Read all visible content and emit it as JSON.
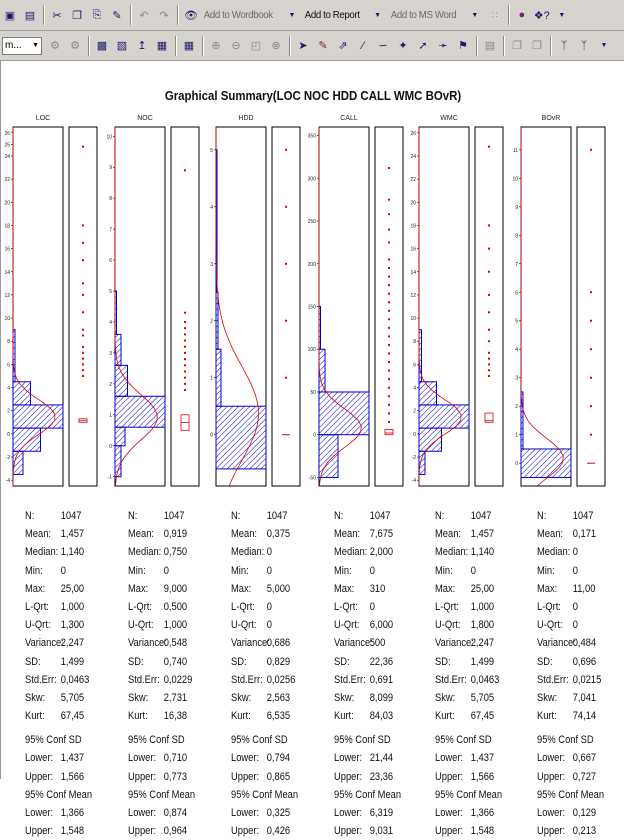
{
  "toolbar": {
    "add_to_wordbook": "Add to Wordbook",
    "add_to_report": "Add to Report",
    "add_to_ms_word": "Add to MS Word",
    "session_dropdown": "m..."
  },
  "colors": {
    "histogram": "#0000cc",
    "curve": "#dd0000",
    "boxplot": "#dd0000",
    "toolbar": "#d6d3ce"
  },
  "chart_data": {
    "type": "histogram",
    "title": "Graphical Summary(LOC NOC HDD CALL WMC BOvR)",
    "panels": [
      {
        "name": "LOC",
        "yticks": [
          "26",
          "25",
          "24",
          "22",
          "20",
          "18",
          "16",
          "14",
          "12",
          "10",
          "8",
          "6",
          "4",
          "2",
          "0",
          "-2",
          "-4"
        ],
        "tickvals": [
          26,
          25,
          24,
          22,
          20,
          18,
          16,
          14,
          12,
          10,
          8,
          6,
          4,
          2,
          0,
          -2,
          -4
        ],
        "ylim": [
          -4.5,
          26.5
        ],
        "bins": [
          {
            "lo": -3.5,
            "hi": -1.5,
            "w": 0.2
          },
          {
            "lo": -1.5,
            "hi": 0.5,
            "w": 0.55
          },
          {
            "lo": 0.5,
            "hi": 2.5,
            "w": 1.0
          },
          {
            "lo": 2.5,
            "hi": 4.5,
            "w": 0.35
          },
          {
            "lo": 4.5,
            "hi": 9,
            "w": 0.04
          }
        ],
        "outliers": [
          24.8,
          18,
          16.5,
          15,
          13,
          12,
          10.5,
          9,
          8.5,
          7.5,
          7,
          6.5,
          6,
          5.5,
          5
        ],
        "box": [
          1,
          1.14,
          1.3
        ],
        "curve_mean": 1.457,
        "curve_sd": 1.499
      },
      {
        "name": "NOC",
        "yticks": [
          "10",
          "9",
          "8",
          "7",
          "6",
          "5",
          "4",
          "3",
          "2",
          "1",
          "0",
          "-1"
        ],
        "tickvals": [
          10,
          9,
          8,
          7,
          6,
          5,
          4,
          3,
          2,
          1,
          0,
          -1
        ],
        "ylim": [
          -1.3,
          10.3
        ],
        "bins": [
          {
            "lo": -1,
            "hi": 0,
            "w": 0.12
          },
          {
            "lo": 0,
            "hi": 0.6,
            "w": 0.2
          },
          {
            "lo": 0.6,
            "hi": 1.6,
            "w": 1.0
          },
          {
            "lo": 1.6,
            "hi": 2.6,
            "w": 0.25
          },
          {
            "lo": 2.6,
            "hi": 3.6,
            "w": 0.12
          },
          {
            "lo": 3.6,
            "hi": 5,
            "w": 0.03
          }
        ],
        "outliers": [
          8.9,
          4.3,
          4,
          3.8,
          3.6,
          3.4,
          3.2,
          3,
          2.8,
          2.6,
          2.4,
          2.2,
          2,
          1.8
        ],
        "box": [
          0.5,
          0.75,
          1
        ],
        "curve_mean": 0.919,
        "curve_sd": 0.74
      },
      {
        "name": "HDD",
        "yticks": [
          "5",
          "4",
          "3",
          "2",
          "1",
          "0"
        ],
        "tickvals": [
          5,
          4,
          3,
          2,
          1,
          0
        ],
        "ylim": [
          -0.9,
          5.4
        ],
        "bins": [
          {
            "lo": -0.6,
            "hi": 0.5,
            "w": 1.0
          },
          {
            "lo": 0.5,
            "hi": 1.5,
            "w": 0.1
          },
          {
            "lo": 1.5,
            "hi": 2.5,
            "w": 0.04
          },
          {
            "lo": 2.5,
            "hi": 5,
            "w": 0.02
          }
        ],
        "outliers": [
          5,
          4,
          3,
          2,
          1
        ],
        "box": [
          0,
          0,
          0
        ],
        "curve_mean": 0.375,
        "curve_sd": 0.829
      },
      {
        "name": "CALL",
        "yticks": [
          "350",
          "300",
          "250",
          "200",
          "150",
          "100",
          "50",
          "0",
          "-50"
        ],
        "tickvals": [
          350,
          300,
          250,
          200,
          150,
          100,
          50,
          0,
          -50
        ],
        "ylim": [
          -60,
          360
        ],
        "bins": [
          {
            "lo": -50,
            "hi": 0,
            "w": 0.38
          },
          {
            "lo": 0,
            "hi": 50,
            "w": 1.0
          },
          {
            "lo": 50,
            "hi": 100,
            "w": 0.12
          },
          {
            "lo": 100,
            "hi": 150,
            "w": 0.03
          }
        ],
        "outliers": [
          312,
          275,
          258,
          240,
          225,
          205,
          195,
          185,
          175,
          165,
          155,
          145,
          135,
          125,
          115,
          105,
          95,
          85,
          75,
          65,
          55,
          45,
          35,
          25,
          15
        ],
        "box": [
          0,
          2,
          6
        ],
        "curve_mean": 7.675,
        "curve_sd": 22.36
      },
      {
        "name": "WMC",
        "yticks": [
          "26",
          "24",
          "22",
          "20",
          "18",
          "16",
          "14",
          "12",
          "10",
          "8",
          "6",
          "4",
          "2",
          "0",
          "-2",
          "-4"
        ],
        "tickvals": [
          26,
          24,
          22,
          20,
          18,
          16,
          14,
          12,
          10,
          8,
          6,
          4,
          2,
          0,
          -2,
          -4
        ],
        "ylim": [
          -4.5,
          26.5
        ],
        "bins": [
          {
            "lo": -3.5,
            "hi": -1.5,
            "w": 0.12
          },
          {
            "lo": -1.5,
            "hi": 0.5,
            "w": 0.45
          },
          {
            "lo": 0.5,
            "hi": 2.5,
            "w": 1.0
          },
          {
            "lo": 2.5,
            "hi": 4.5,
            "w": 0.35
          },
          {
            "lo": 4.5,
            "hi": 9,
            "w": 0.05
          }
        ],
        "outliers": [
          24.8,
          18,
          16,
          14,
          12,
          10.5,
          9,
          8,
          7,
          6.5,
          6,
          5.5,
          5
        ],
        "box": [
          1,
          1.14,
          1.8
        ],
        "curve_mean": 1.457,
        "curve_sd": 1.499
      },
      {
        "name": "BOvR",
        "yticks": [
          "11",
          "10",
          "9",
          "8",
          "7",
          "6",
          "5",
          "4",
          "3",
          "2",
          "1",
          "0"
        ],
        "tickvals": [
          11,
          10,
          9,
          8,
          7,
          6,
          5,
          4,
          3,
          2,
          1,
          0
        ],
        "ylim": [
          -0.8,
          11.8
        ],
        "bins": [
          {
            "lo": -0.5,
            "hi": 0.5,
            "w": 1.0
          },
          {
            "lo": 0.5,
            "hi": 2.5,
            "w": 0.04
          }
        ],
        "outliers": [
          11,
          6,
          5,
          4,
          3,
          2,
          1
        ],
        "box": [
          0,
          0,
          0
        ],
        "curve_mean": 0.171,
        "curve_sd": 0.696
      }
    ]
  },
  "stats_labels": [
    "N:",
    "Mean:",
    "Median:",
    "Min:",
    "Max:",
    "L-Qrt:",
    "U-Qrt:",
    "Variance:",
    "SD:",
    "Std.Err:",
    "Skw:",
    "Kurt:"
  ],
  "conf_sd_label": "95% Conf SD",
  "conf_mean_label": "95% Conf Mean",
  "lower_label": "Lower:",
  "upper_label": "Upper:",
  "stats": [
    {
      "values": [
        "1047",
        "1,457",
        "1,140",
        "0",
        "25,00",
        "1,000",
        "1,300",
        "2,247",
        "1,499",
        "0,0463",
        "5,705",
        "67,45"
      ],
      "conf_sd": [
        "1,437",
        "1,566"
      ],
      "conf_mean": [
        "1,366",
        "1,548"
      ]
    },
    {
      "values": [
        "1047",
        "0,919",
        "0,750",
        "0",
        "9,000",
        "0,500",
        "1,000",
        "0,548",
        "0,740",
        "0,0229",
        "2,731",
        "16,38"
      ],
      "conf_sd": [
        "0,710",
        "0,773"
      ],
      "conf_mean": [
        "0,874",
        "0,964"
      ]
    },
    {
      "values": [
        "1047",
        "0,375",
        "0",
        "0",
        "5,000",
        "0",
        "0",
        "0,686",
        "0,829",
        "0,0256",
        "2,563",
        "6,535"
      ],
      "conf_sd": [
        "0,794",
        "0,865"
      ],
      "conf_mean": [
        "0,325",
        "0,426"
      ]
    },
    {
      "values": [
        "1047",
        "7,675",
        "2,000",
        "0",
        "310",
        "0",
        "6,000",
        "500",
        "22,36",
        "0,691",
        "8,099",
        "84,03"
      ],
      "conf_sd": [
        "21,44",
        "23,36"
      ],
      "conf_mean": [
        "6,319",
        "9,031"
      ]
    },
    {
      "values": [
        "1047",
        "1,457",
        "1,140",
        "0",
        "25,00",
        "1,000",
        "1,800",
        "2,247",
        "1,499",
        "0,0463",
        "5,705",
        "67,45"
      ],
      "conf_sd": [
        "1,437",
        "1,566"
      ],
      "conf_mean": [
        "1,366",
        "1,548"
      ]
    },
    {
      "values": [
        "1047",
        "0,171",
        "0",
        "0",
        "11,00",
        "0",
        "0",
        "0,484",
        "0,696",
        "0,0215",
        "7,041",
        "74,14"
      ],
      "conf_sd": [
        "0,667",
        "0,727"
      ],
      "conf_mean": [
        "0,129",
        "0,213"
      ]
    }
  ]
}
